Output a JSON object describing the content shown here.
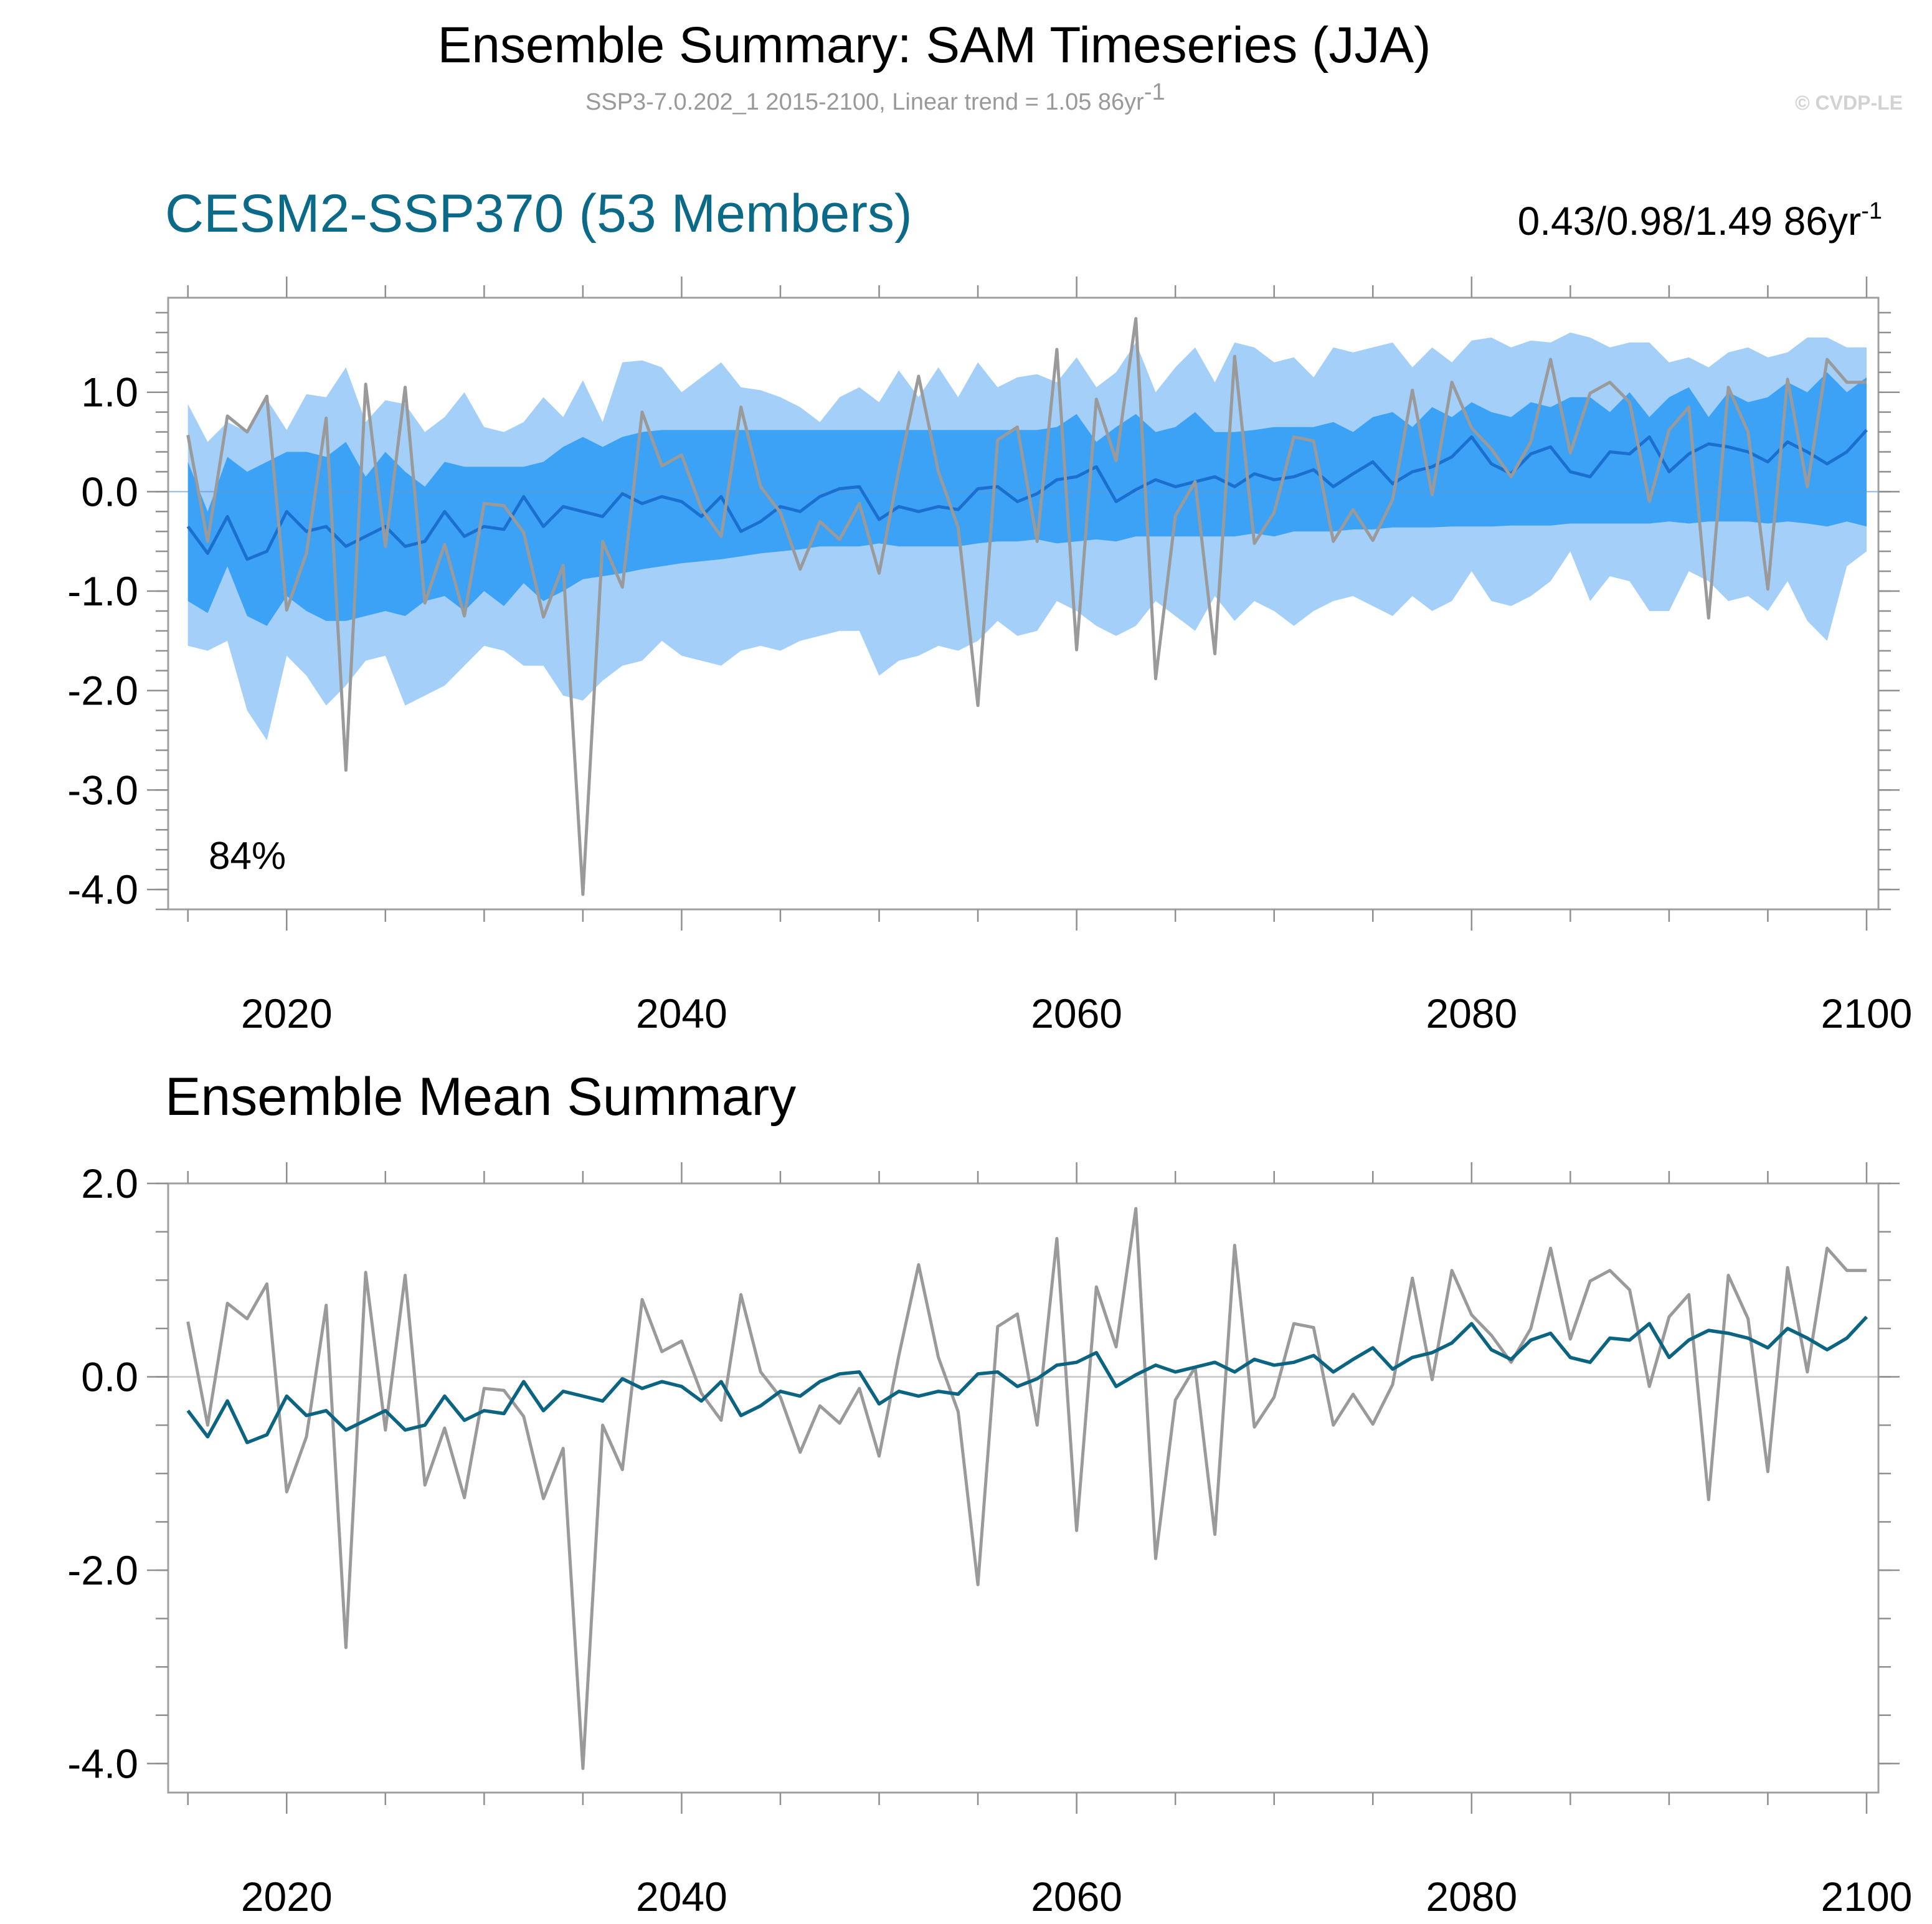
{
  "header": {
    "title": "Ensemble Summary: SAM Timeseries (JJA)",
    "subtitle": "SSP3-7.0.202_1 2015-2100, Linear trend = 1.05 86yr",
    "subtitle_sup": "-1",
    "watermark": "© CVDP-LE"
  },
  "colors": {
    "band_outer": "#a3cff9",
    "band_inner": "#3ba2f6",
    "ens_mean_top": "#1b6fcf",
    "ens_mean_bottom": "#0b6482",
    "obs": "#9a9a9a",
    "title_teal": "#0b6a88"
  },
  "chart_data": [
    {
      "type": "area",
      "name": "ensemble-spread-panel",
      "title": "CESM2-SSP370 (53 Members)",
      "trend_text": "0.43/0.98/1.49 86yr",
      "trend_sup": "-1",
      "annotation": "84%",
      "xlim": [
        2014,
        2100.6
      ],
      "ylim": [
        -4.2,
        1.95
      ],
      "xticks": [
        2020,
        2040,
        2060,
        2080,
        2100
      ],
      "xtick_labels": [
        "2020",
        "2040",
        "2060",
        "2080",
        "2100"
      ],
      "yticks": [
        1.0,
        0.0,
        -1.0,
        -2.0,
        -3.0,
        -4.0
      ],
      "ytick_labels": [
        "1.0",
        "0.0",
        "-1.0",
        "-2.0",
        "-3.0",
        "-4.0"
      ],
      "x_start": 2015,
      "x_end": 2100,
      "series": [
        {
          "name": "ensemble max (outer band top)",
          "values": [
            0.88,
            0.5,
            0.7,
            0.6,
            0.93,
            0.62,
            0.98,
            0.95,
            1.25,
            0.7,
            0.92,
            0.88,
            0.6,
            0.75,
            1.0,
            0.65,
            0.6,
            0.7,
            0.95,
            0.75,
            1.12,
            0.7,
            1.3,
            1.32,
            1.25,
            1.0,
            1.15,
            1.3,
            1.05,
            1.02,
            0.95,
            0.85,
            0.7,
            0.95,
            1.05,
            0.9,
            1.22,
            0.95,
            1.25,
            0.95,
            1.3,
            1.05,
            1.15,
            1.18,
            1.1,
            1.35,
            1.05,
            1.2,
            1.5,
            1.0,
            1.25,
            1.45,
            1.1,
            1.5,
            1.45,
            1.3,
            1.35,
            1.15,
            1.45,
            1.4,
            1.45,
            1.5,
            1.25,
            1.45,
            1.3,
            1.52,
            1.55,
            1.45,
            1.52,
            1.5,
            1.6,
            1.55,
            1.45,
            1.5,
            1.5,
            1.3,
            1.35,
            1.25,
            1.4,
            1.45,
            1.35,
            1.4,
            1.55,
            1.55,
            1.45,
            1.45
          ]
        },
        {
          "name": "ensemble 84th percentile (inner band top)",
          "values": [
            0.3,
            -0.2,
            0.35,
            0.2,
            0.3,
            0.4,
            0.4,
            0.35,
            0.5,
            0.15,
            0.4,
            0.2,
            0.05,
            0.3,
            0.25,
            0.25,
            0.25,
            0.25,
            0.3,
            0.45,
            0.55,
            0.45,
            0.55,
            0.6,
            0.62,
            0.62,
            0.62,
            0.62,
            0.62,
            0.62,
            0.62,
            0.62,
            0.62,
            0.62,
            0.62,
            0.62,
            0.62,
            0.62,
            0.62,
            0.62,
            0.62,
            0.62,
            0.62,
            0.62,
            0.65,
            0.78,
            0.5,
            0.65,
            0.78,
            0.6,
            0.65,
            0.8,
            0.6,
            0.6,
            0.62,
            0.65,
            0.65,
            0.65,
            0.7,
            0.6,
            0.75,
            0.8,
            0.65,
            0.85,
            0.75,
            0.9,
            0.8,
            0.75,
            0.9,
            0.85,
            0.95,
            0.95,
            0.8,
            1.0,
            0.75,
            0.95,
            1.05,
            0.75,
            1.0,
            0.9,
            0.95,
            1.1,
            1.0,
            1.2,
            1.0,
            1.15
          ]
        },
        {
          "name": "ensemble mean",
          "values": [
            -0.35,
            -0.62,
            -0.25,
            -0.68,
            -0.6,
            -0.2,
            -0.4,
            -0.35,
            -0.55,
            -0.45,
            -0.35,
            -0.55,
            -0.5,
            -0.2,
            -0.45,
            -0.35,
            -0.38,
            -0.05,
            -0.35,
            -0.15,
            -0.2,
            -0.25,
            -0.02,
            -0.12,
            -0.05,
            -0.1,
            -0.25,
            -0.05,
            -0.4,
            -0.3,
            -0.15,
            -0.2,
            -0.05,
            0.03,
            0.05,
            -0.28,
            -0.15,
            -0.2,
            -0.15,
            -0.18,
            0.03,
            0.05,
            -0.1,
            -0.02,
            0.12,
            0.15,
            0.25,
            -0.1,
            0.02,
            0.12,
            0.05,
            0.1,
            0.15,
            0.05,
            0.18,
            0.12,
            0.15,
            0.22,
            0.05,
            0.18,
            0.3,
            0.08,
            0.2,
            0.25,
            0.35,
            0.55,
            0.28,
            0.18,
            0.38,
            0.45,
            0.2,
            0.15,
            0.4,
            0.38,
            0.55,
            0.2,
            0.38,
            0.48,
            0.45,
            0.4,
            0.3,
            0.5,
            0.4,
            0.28,
            0.4,
            0.62
          ]
        },
        {
          "name": "ensemble 16th percentile (inner band bottom)",
          "values": [
            -1.1,
            -1.22,
            -0.75,
            -1.25,
            -1.35,
            -1.05,
            -1.2,
            -1.3,
            -1.3,
            -1.25,
            -1.2,
            -1.25,
            -1.1,
            -1.05,
            -1.2,
            -1.0,
            -1.15,
            -0.92,
            -1.1,
            -1.0,
            -0.88,
            -0.85,
            -0.82,
            -0.78,
            -0.75,
            -0.72,
            -0.7,
            -0.68,
            -0.65,
            -0.62,
            -0.6,
            -0.58,
            -0.55,
            -0.55,
            -0.55,
            -0.52,
            -0.55,
            -0.55,
            -0.55,
            -0.55,
            -0.52,
            -0.5,
            -0.5,
            -0.48,
            -0.52,
            -0.5,
            -0.48,
            -0.5,
            -0.45,
            -0.45,
            -0.45,
            -0.45,
            -0.45,
            -0.45,
            -0.42,
            -0.45,
            -0.4,
            -0.4,
            -0.4,
            -0.38,
            -0.38,
            -0.36,
            -0.36,
            -0.36,
            -0.35,
            -0.35,
            -0.35,
            -0.34,
            -0.34,
            -0.34,
            -0.32,
            -0.32,
            -0.32,
            -0.32,
            -0.32,
            -0.3,
            -0.32,
            -0.3,
            -0.3,
            -0.3,
            -0.32,
            -0.3,
            -0.32,
            -0.35,
            -0.3,
            -0.35
          ]
        },
        {
          "name": "ensemble min (outer band bottom)",
          "values": [
            -1.55,
            -1.6,
            -1.5,
            -2.2,
            -2.5,
            -1.65,
            -1.85,
            -2.15,
            -1.95,
            -1.7,
            -1.65,
            -2.15,
            -2.05,
            -1.95,
            -1.75,
            -1.55,
            -1.6,
            -1.75,
            -1.75,
            -2.05,
            -2.1,
            -1.9,
            -1.75,
            -1.7,
            -1.5,
            -1.65,
            -1.7,
            -1.75,
            -1.6,
            -1.55,
            -1.6,
            -1.5,
            -1.45,
            -1.4,
            -1.4,
            -1.85,
            -1.7,
            -1.65,
            -1.55,
            -1.6,
            -1.5,
            -1.3,
            -1.45,
            -1.4,
            -1.1,
            -1.2,
            -1.35,
            -1.45,
            -1.35,
            -1.1,
            -1.25,
            -1.4,
            -1.05,
            -1.3,
            -1.1,
            -1.2,
            -1.35,
            -1.2,
            -1.1,
            -1.05,
            -1.15,
            -1.25,
            -1.05,
            -1.2,
            -1.1,
            -0.8,
            -1.1,
            -1.15,
            -1.05,
            -0.9,
            -0.6,
            -1.1,
            -0.85,
            -0.9,
            -1.2,
            -1.2,
            -0.8,
            -0.9,
            -1.1,
            -1.05,
            -1.2,
            -0.9,
            -1.3,
            -1.5,
            -0.75,
            -0.6
          ]
        },
        {
          "name": "observations",
          "values": [
            0.57,
            -0.5,
            0.76,
            0.6,
            0.96,
            -1.19,
            -0.62,
            0.74,
            -2.8,
            1.08,
            -0.55,
            1.05,
            -1.12,
            -0.53,
            -1.25,
            -0.12,
            -0.14,
            -0.41,
            -1.26,
            -0.74,
            -4.05,
            -0.5,
            -0.96,
            0.8,
            0.26,
            0.37,
            -0.17,
            -0.45,
            0.85,
            0.05,
            -0.21,
            -0.78,
            -0.3,
            -0.48,
            -0.12,
            -0.82,
            0.22,
            1.16,
            0.2,
            -0.36,
            -2.15,
            0.52,
            0.65,
            -0.5,
            1.43,
            -1.59,
            0.93,
            0.31,
            1.74,
            -1.88,
            -0.24,
            0.1,
            -1.63,
            1.36,
            -0.52,
            -0.21,
            0.55,
            0.51,
            -0.5,
            -0.18,
            -0.49,
            -0.08,
            1.02,
            -0.03,
            1.1,
            0.64,
            0.43,
            0.15,
            0.5,
            1.33,
            0.39,
            0.99,
            1.1,
            0.9,
            -0.1,
            0.62,
            0.85,
            -1.27,
            1.05,
            0.6,
            -0.98,
            1.13,
            0.05,
            1.33,
            1.1,
            1.1
          ]
        }
      ]
    },
    {
      "type": "line",
      "name": "ensemble-mean-panel",
      "title": "Ensemble Mean Summary",
      "xlim": [
        2014,
        2100.6
      ],
      "ylim": [
        -4.3,
        2.0
      ],
      "xticks": [
        2020,
        2040,
        2060,
        2080,
        2100
      ],
      "xtick_labels": [
        "2020",
        "2040",
        "2060",
        "2080",
        "2100"
      ],
      "yticks": [
        2.0,
        0.0,
        -2.0,
        -4.0
      ],
      "ytick_labels": [
        "2.0",
        "0.0",
        "-2.0",
        "-4.0"
      ],
      "x_start": 2015,
      "x_end": 2100,
      "series": [
        {
          "name": "observations",
          "ref": "observations"
        },
        {
          "name": "ensemble mean",
          "ref": "ensemble mean"
        }
      ]
    }
  ]
}
